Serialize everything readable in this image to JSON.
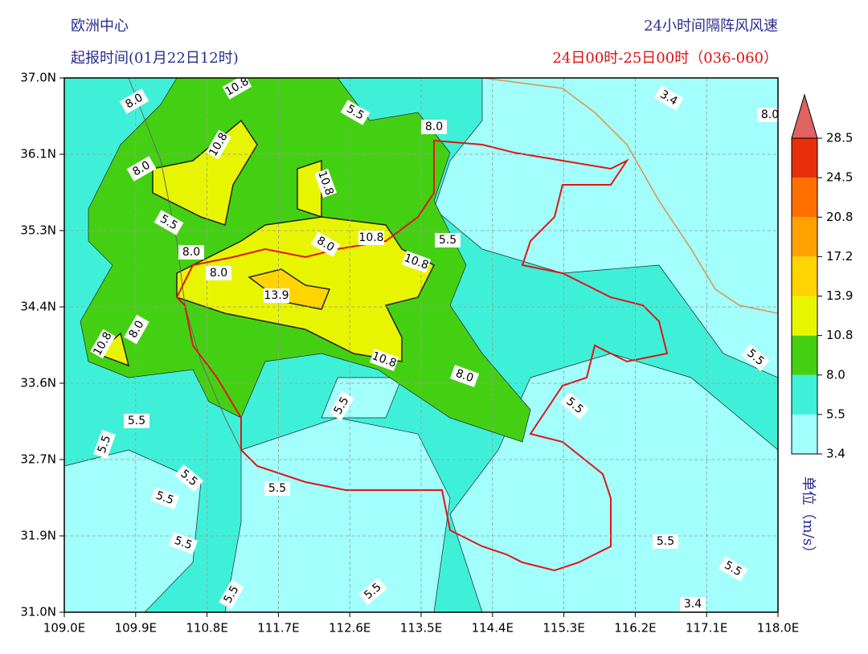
{
  "header": {
    "left_title": "欧洲中心",
    "left_subtitle": "起报时间(01月22日12时)",
    "right_title": "24小时间隔阵风风速",
    "right_subtitle": "24日00时-25日00时（036-060）"
  },
  "map": {
    "xticks": [
      "109.0E",
      "109.9E",
      "110.8E",
      "111.7E",
      "112.6E",
      "113.5E",
      "114.4E",
      "115.3E",
      "116.2E",
      "117.1E",
      "118.0E"
    ],
    "yticks": [
      "37.0N",
      "36.1N",
      "35.3N",
      "34.4N",
      "33.6N",
      "32.7N",
      "31.9N",
      "31.0N"
    ],
    "contour_labels": [
      "8.0",
      "10.8",
      "5.5",
      "8.0",
      "3.4",
      "10.8",
      "10.8",
      "8.0",
      "5.5",
      "8.0",
      "8.0",
      "10.8",
      "5.5",
      "10.8",
      "8.0",
      "13.9",
      "10.8",
      "8.0",
      "10.8",
      "8.0",
      "5.5",
      "5.5",
      "5.5",
      "5.5",
      "5.5",
      "5.5",
      "5.5",
      "5.5",
      "5.5",
      "5.5",
      "5.5",
      "5.5",
      "5.5",
      "3.4",
      "8.0"
    ]
  },
  "colorbar": {
    "levels": [
      3.4,
      5.5,
      {
        "value": 8,
        "label": "8.0"
      },
      10.8,
      13.9,
      17.2,
      20.8,
      24.5,
      28.5
    ],
    "colors": [
      "#a2fffb",
      "#3ff0d8",
      "#44d012",
      "#e8f500",
      "#ffd400",
      "#ffa200",
      "#ff7000",
      "#e8300c",
      "#e06262"
    ],
    "unit": "单位（m/s）"
  }
}
